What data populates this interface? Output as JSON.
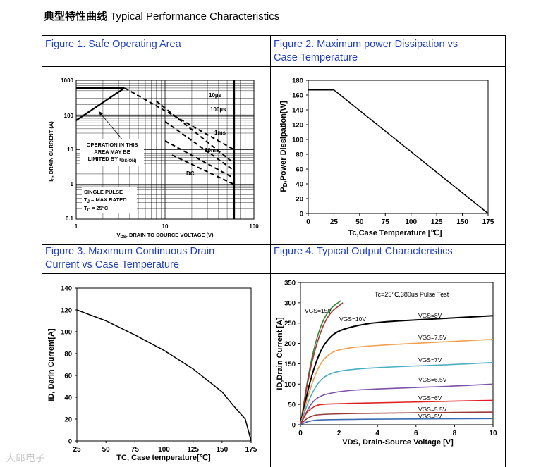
{
  "header": {
    "title_cn": "典型特性曲线",
    "title_en": "Typical Performance Characteristics"
  },
  "watermark": "大郎电子",
  "colors": {
    "title_blue": "#1f3fbf"
  },
  "chart_data": [
    {
      "id": "fig1",
      "type": "line",
      "title": "Figure 1. Safe Operating Area",
      "xlabel": "VDS, DRAIN TO SOURCE VOLTAGE (V)",
      "ylabel": "ID, DRAIN CURRENT (A)",
      "xscale": "log",
      "yscale": "log",
      "xlim": [
        1,
        100
      ],
      "ylim": [
        0.1,
        1000
      ],
      "xticks": [
        "1",
        "10",
        "100"
      ],
      "yticks": [
        "0.1",
        "1",
        "10",
        "100",
        "1000"
      ],
      "series": [
        {
          "name": "10µs",
          "points": [
            [
              1.7,
              600
            ],
            [
              3.5,
              600
            ],
            [
              60,
              10
            ]
          ]
        },
        {
          "name": "100µs",
          "points": [
            [
              8,
              250
            ],
            [
              60,
              4
            ]
          ]
        },
        {
          "name": "1ms",
          "points": [
            [
              10,
              65
            ],
            [
              60,
              2.5
            ]
          ]
        },
        {
          "name": "10ms",
          "points": [
            [
              10,
              18
            ],
            [
              60,
              1.5
            ]
          ]
        },
        {
          "name": "DC",
          "points": [
            [
              12,
              7
            ],
            [
              60,
              1
            ]
          ]
        },
        {
          "name": "RDS(ON) limit",
          "points": [
            [
              1,
              70
            ],
            [
              3.5,
              600
            ]
          ]
        }
      ],
      "annotations": [
        "OPERATION IN THIS",
        "AREA MAY BE",
        "LIMITED BY r",
        "DS(ON)",
        "SINGLE PULSE",
        "T",
        "J",
        " = MAX RATED",
        "T",
        "C",
        " = 25°C"
      ],
      "labels": {
        "x_main": "V",
        "x_sub": "DS",
        "x_rest": ", DRAIN TO SOURCE VOLTAGE (V)",
        "y_main": "I",
        "y_sub": "D",
        "y_rest": ", DRAIN CURRENT (A)"
      }
    },
    {
      "id": "fig2",
      "type": "line",
      "title": "Figure 2. Maximum power Dissipation vs Case Temperature",
      "title_lines": [
        "Figure 2. Maximum power Dissipation vs",
        "Case Temperature"
      ],
      "xlabel": "Tc,Case Temperature [℃]",
      "ylabel": "PD,Power Dissipation[W]",
      "ylabel_parts": {
        "main": "P",
        "sub": "D",
        "rest": ",Power Dissipation[W]"
      },
      "xlim": [
        0,
        175
      ],
      "ylim": [
        0,
        180
      ],
      "xticks": [
        0,
        25,
        50,
        75,
        100,
        125,
        150,
        175
      ],
      "yticks": [
        0,
        20,
        40,
        60,
        80,
        100,
        120,
        140,
        160,
        180
      ],
      "series": [
        {
          "name": "PD",
          "x": [
            0,
            25,
            175
          ],
          "y": [
            167,
            167,
            0
          ]
        }
      ]
    },
    {
      "id": "fig3",
      "type": "line",
      "title": "Figure 3. Maximum Continuous Drain Current vs Case Temperature",
      "title_lines": [
        "Figure 3. Maximum Continuous Drain",
        "Current vs Case Temperature"
      ],
      "xlabel": "TC, Case temperature[℃]",
      "ylabel": "ID,  Darin Current[A]",
      "xlim": [
        25,
        175
      ],
      "ylim": [
        0,
        140
      ],
      "xticks": [
        25,
        50,
        75,
        100,
        125,
        150,
        175
      ],
      "yticks": [
        0,
        20,
        40,
        60,
        80,
        100,
        120,
        140
      ],
      "series": [
        {
          "name": "ID",
          "x": [
            25,
            50,
            75,
            100,
            125,
            150,
            160,
            170,
            175
          ],
          "y": [
            120,
            110,
            97,
            83,
            66,
            45,
            32,
            20,
            0
          ]
        }
      ]
    },
    {
      "id": "fig4",
      "type": "line",
      "title": "Figure 4. Typical Output Characteristics",
      "xlabel": "VDS, Drain-Source Voltage [V]",
      "ylabel": "ID,Drain Current [A]",
      "xlim": [
        0,
        10
      ],
      "ylim": [
        0,
        350
      ],
      "xticks": [
        0,
        2,
        4,
        6,
        8,
        10
      ],
      "yticks": [
        0,
        50,
        100,
        150,
        200,
        250,
        300,
        350
      ],
      "legend_note": "Tc=25℃,380us Pulse Test",
      "series": [
        {
          "name": "VGS=15V",
          "color": "#2e8b2e",
          "x": [
            0,
            0.5,
            1,
            1.5,
            2.1
          ],
          "y": [
            0,
            150,
            240,
            285,
            305
          ]
        },
        {
          "name": "VGS=10V",
          "color": "#b03030",
          "x": [
            0,
            0.5,
            1,
            1.5,
            2.2
          ],
          "y": [
            0,
            140,
            225,
            275,
            300
          ]
        },
        {
          "name": "VGS=8V",
          "color": "#000000",
          "x": [
            0,
            0.5,
            1,
            1.5,
            2,
            3,
            4,
            6,
            8,
            10
          ],
          "y": [
            0,
            110,
            180,
            215,
            232,
            245,
            252,
            258,
            263,
            268
          ]
        },
        {
          "name": "VGS=7.5V",
          "color": "#f0a050",
          "x": [
            0,
            0.5,
            1,
            1.5,
            2,
            3,
            5,
            8,
            10
          ],
          "y": [
            0,
            90,
            150,
            175,
            185,
            192,
            198,
            205,
            210
          ]
        },
        {
          "name": "VGS=7V",
          "color": "#4aaec0",
          "x": [
            0,
            0.5,
            1,
            1.5,
            2,
            3,
            5,
            8,
            10
          ],
          "y": [
            0,
            70,
            110,
            125,
            132,
            138,
            143,
            148,
            153
          ]
        },
        {
          "name": "VGS=6.5V",
          "color": "#7b52a8",
          "x": [
            0,
            0.5,
            1,
            2,
            3,
            5,
            8,
            10
          ],
          "y": [
            0,
            50,
            72,
            82,
            86,
            90,
            95,
            100
          ]
        },
        {
          "name": "VGS=6V",
          "color": "#e02020",
          "x": [
            0,
            0.3,
            0.7,
            1,
            2,
            4,
            7,
            10
          ],
          "y": [
            0,
            30,
            45,
            50,
            52,
            54,
            57,
            60
          ]
        },
        {
          "name": "VGS=5.5V",
          "color": "#9a3a3a",
          "x": [
            0,
            0.3,
            0.7,
            1,
            2,
            5,
            10
          ],
          "y": [
            0,
            15,
            23,
            25,
            27,
            29,
            31
          ]
        },
        {
          "name": "VGS=5V",
          "color": "#3a6ab0",
          "x": [
            0,
            0.3,
            0.7,
            1,
            2,
            5,
            10
          ],
          "y": [
            0,
            7,
            11,
            12,
            13,
            14,
            15
          ]
        }
      ]
    }
  ]
}
